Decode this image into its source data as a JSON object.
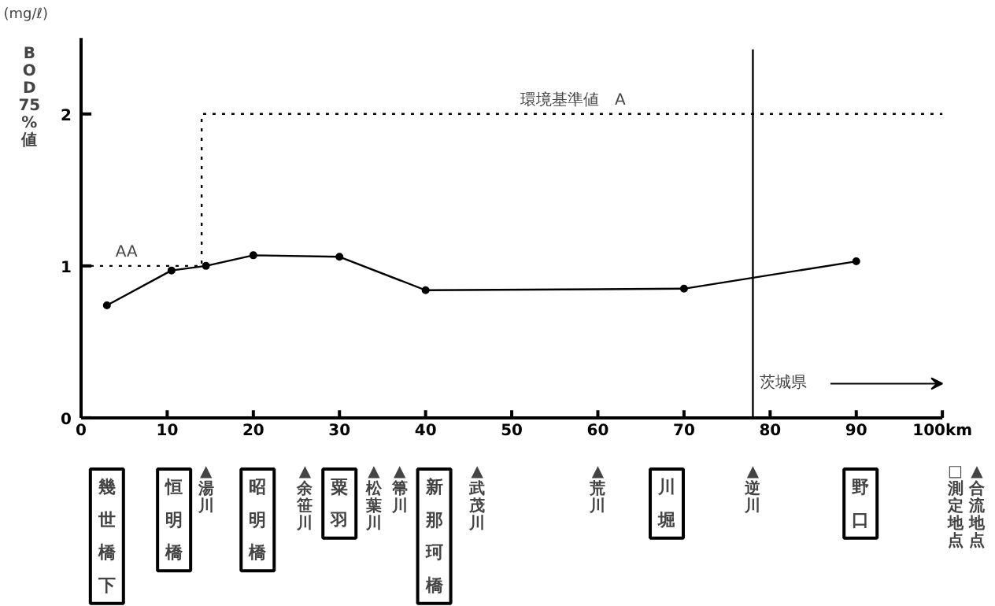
{
  "chart_data": {
    "type": "line",
    "ylabel": "BOD75%値",
    "xlim": [
      0,
      100
    ],
    "ylim": [
      0,
      2.5
    ],
    "xticks": [
      0,
      10,
      20,
      30,
      40,
      50,
      60,
      70,
      80,
      90,
      {
        "value": 100,
        "label": "100km"
      }
    ],
    "yticks": [
      0,
      1,
      2
    ],
    "grid": false,
    "series": [
      {
        "color": "#000000",
        "x": [
          3,
          10.5,
          14.5,
          20,
          30,
          40,
          70,
          90
        ],
        "values": [
          0.74,
          0.97,
          1.0,
          1.07,
          1.06,
          0.84,
          0.85,
          1.03
        ],
        "marker": "circle",
        "line_style": "solid"
      },
      {
        "color": "#000000",
        "x": [
          0,
          14,
          14,
          100
        ],
        "values": [
          1,
          1,
          2,
          2
        ],
        "marker": "none",
        "line_style": "dotted"
      }
    ],
    "ref_lines": [
      {
        "axis": "x",
        "value": 78,
        "label": "茨城県",
        "color": "#000000",
        "line_style": "solid"
      }
    ],
    "annotations": [
      "(mg/ℓ)",
      "幾世橋下",
      "恒明橋",
      "▲湯川",
      "昭明橋",
      "▲余笹川",
      "粟羽",
      "▲松葉川",
      "▲箒川",
      "新那珂橋",
      "▲武茂川",
      "▲荒川",
      "川堀",
      "▲逆川",
      "野口",
      "□測定地点",
      "▲合流地点",
      {
        "text": "AA",
        "x": 4,
        "y": 1
      },
      {
        "text": "環境基準値　A",
        "x": 51,
        "y": 2
      }
    ]
  }
}
